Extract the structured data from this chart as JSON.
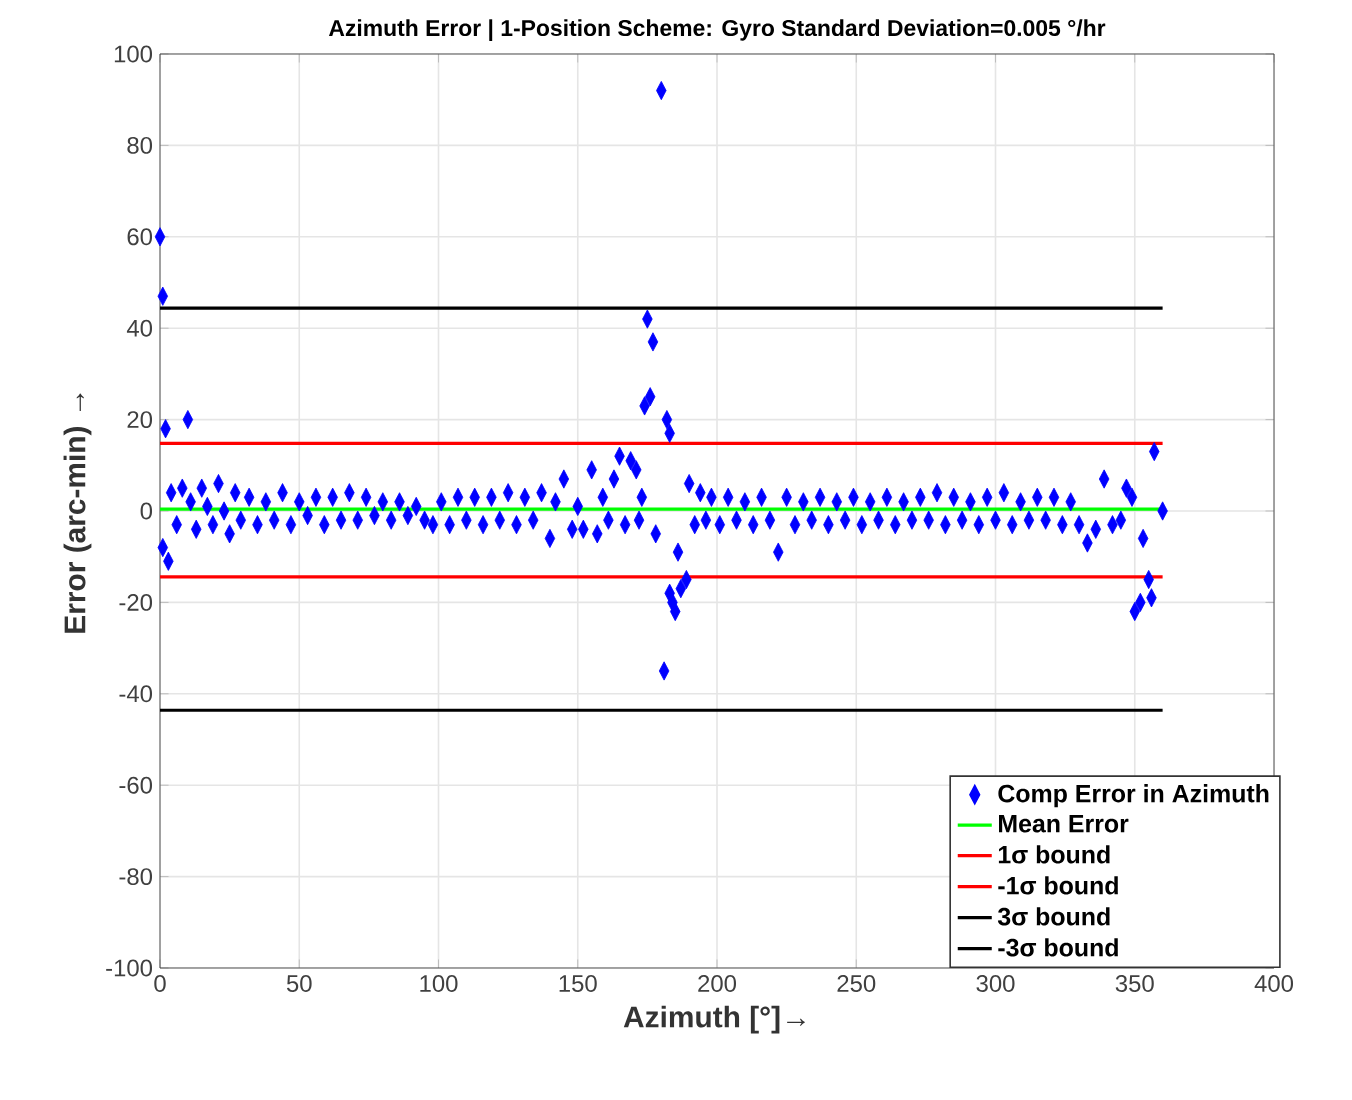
{
  "chart_data": {
    "type": "scatter",
    "title": "Azimuth Error | 1-Position Scheme: Gyro Standard Deviation=0.005 °/hr",
    "xlabel": "Azimuth [°]→",
    "ylabel": "Error (arc-min) →",
    "xlim": [
      0,
      400
    ],
    "ylim": [
      -100,
      100
    ],
    "xticks": [
      0,
      50,
      100,
      150,
      200,
      250,
      300,
      350,
      400
    ],
    "yticks": [
      -100,
      -80,
      -60,
      -40,
      -20,
      0,
      20,
      40,
      60,
      80,
      100
    ],
    "grid": true,
    "legend": "bottom right",
    "marker": "diamond",
    "series": [
      {
        "name": "Comp Error in Azimuth",
        "color": "#0000ff",
        "x": [
          0,
          1,
          1,
          2,
          3,
          4,
          6,
          8,
          10,
          11,
          13,
          15,
          17,
          19,
          21,
          23,
          25,
          27,
          29,
          32,
          35,
          38,
          41,
          44,
          47,
          50,
          53,
          56,
          59,
          62,
          65,
          68,
          71,
          74,
          77,
          80,
          83,
          86,
          89,
          92,
          95,
          98,
          101,
          104,
          107,
          110,
          113,
          116,
          119,
          122,
          125,
          128,
          131,
          134,
          137,
          140,
          142,
          145,
          148,
          150,
          152,
          155,
          157,
          159,
          161,
          163,
          165,
          167,
          169,
          171,
          172,
          173,
          174,
          175,
          176,
          177,
          178,
          180,
          181,
          182,
          183,
          183,
          184,
          185,
          186,
          187,
          189,
          190,
          192,
          194,
          196,
          198,
          201,
          204,
          207,
          210,
          213,
          216,
          219,
          222,
          225,
          228,
          231,
          234,
          237,
          240,
          243,
          246,
          249,
          252,
          255,
          258,
          261,
          264,
          267,
          270,
          273,
          276,
          279,
          282,
          285,
          288,
          291,
          294,
          297,
          300,
          303,
          306,
          309,
          312,
          315,
          318,
          321,
          324,
          327,
          330,
          333,
          336,
          339,
          342,
          345,
          347,
          349,
          350,
          352,
          353,
          355,
          356,
          357,
          360
        ],
        "values": [
          60,
          47,
          -8,
          18,
          -11,
          4,
          -3,
          5,
          20,
          2,
          -4,
          5,
          1,
          -3,
          6,
          0,
          -5,
          4,
          -2,
          3,
          -3,
          2,
          -2,
          4,
          -3,
          2,
          -1,
          3,
          -3,
          3,
          -2,
          4,
          -2,
          3,
          -1,
          2,
          -2,
          2,
          -1,
          1,
          -2,
          -3,
          2,
          -3,
          3,
          -2,
          3,
          -3,
          3,
          -2,
          4,
          -3,
          3,
          -2,
          4,
          -6,
          2,
          7,
          -4,
          1,
          -4,
          9,
          -5,
          3,
          -2,
          7,
          12,
          -3,
          11,
          9,
          -2,
          3,
          23,
          42,
          25,
          37,
          -5,
          92,
          -35,
          20,
          17,
          -18,
          -20,
          -22,
          -9,
          -17,
          -15,
          6,
          -3,
          4,
          -2,
          3,
          -3,
          3,
          -2,
          2,
          -3,
          3,
          -2,
          -9,
          3,
          -3,
          2,
          -2,
          3,
          -3,
          2,
          -2,
          3,
          -3,
          2,
          -2,
          3,
          -3,
          2,
          -2,
          3,
          -2,
          4,
          -3,
          3,
          -2,
          2,
          -3,
          3,
          -2,
          4,
          -3,
          2,
          -2,
          3,
          -2,
          3,
          -3,
          2,
          -3,
          -7,
          -4,
          7,
          -3,
          -2,
          5,
          3,
          -22,
          -20,
          -6,
          -15,
          -19,
          13,
          0
        ]
      },
      {
        "name": "Mean Error",
        "type": "line",
        "marker": "none",
        "color": "#00ff00",
        "x": [
          0,
          360
        ],
        "values": [
          0.4,
          0.4
        ]
      },
      {
        "name": "1σ bound",
        "type": "line",
        "marker": "none",
        "color": "#ff0000",
        "x": [
          0,
          360
        ],
        "values": [
          14.8,
          14.8
        ]
      },
      {
        "name": "-1σ bound",
        "type": "line",
        "marker": "none",
        "color": "#ff0000",
        "x": [
          0,
          360
        ],
        "values": [
          -14.4,
          -14.4
        ]
      },
      {
        "name": "3σ bound",
        "type": "line",
        "marker": "none",
        "color": "#000000",
        "x": [
          0,
          360
        ],
        "values": [
          44.4,
          44.4
        ]
      },
      {
        "name": "-3σ bound",
        "type": "line",
        "marker": "none",
        "color": "#000000",
        "x": [
          0,
          360
        ],
        "values": [
          -43.6,
          -43.6
        ]
      }
    ]
  }
}
